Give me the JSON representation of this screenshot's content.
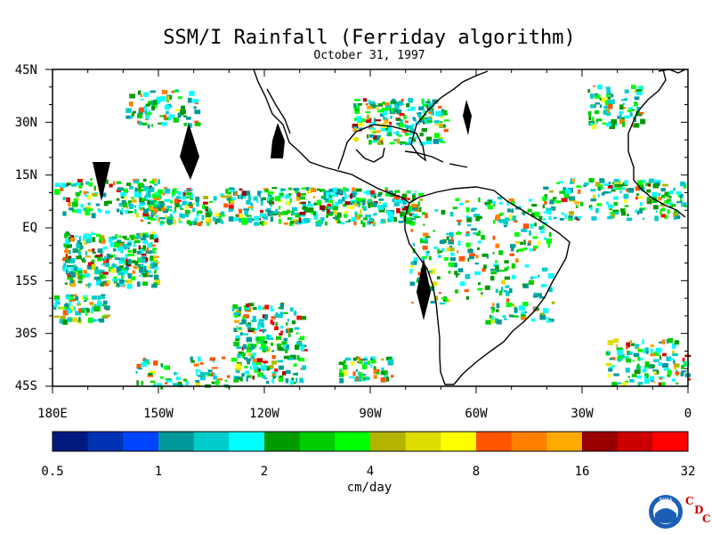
{
  "title": "SSM/I Rainfall (Ferriday algorithm)",
  "subtitle": "October 31, 1997",
  "map": {
    "lat_labels": [
      "45N",
      "30N",
      "15N",
      "EQ",
      "15S",
      "30S",
      "45S"
    ],
    "lon_labels": [
      "180E",
      "150W",
      "120W",
      "90W",
      "60W",
      "30W",
      "0"
    ],
    "extent": {
      "lon_min": -180,
      "lon_max": 0,
      "lat_min": -45,
      "lat_max": 45
    }
  },
  "colorbar": {
    "units": "cm/day",
    "tick_labels": [
      "0.5",
      "1",
      "2",
      "4",
      "8",
      "16",
      "32"
    ],
    "colors": [
      "#001a80",
      "#0033b3",
      "#0044ff",
      "#009999",
      "#00cccc",
      "#00ffff",
      "#009900",
      "#00cc00",
      "#00ff00",
      "#b3b300",
      "#dddd00",
      "#ffff00",
      "#ff5500",
      "#ff8000",
      "#ffaa00",
      "#990000",
      "#cc0000",
      "#ff0000"
    ]
  },
  "logo": {
    "name": "noaa-logo",
    "text": "NOAA"
  },
  "brand": {
    "cdc_c1": "C",
    "cdc_d": "D",
    "cdc_c2": "C"
  }
}
